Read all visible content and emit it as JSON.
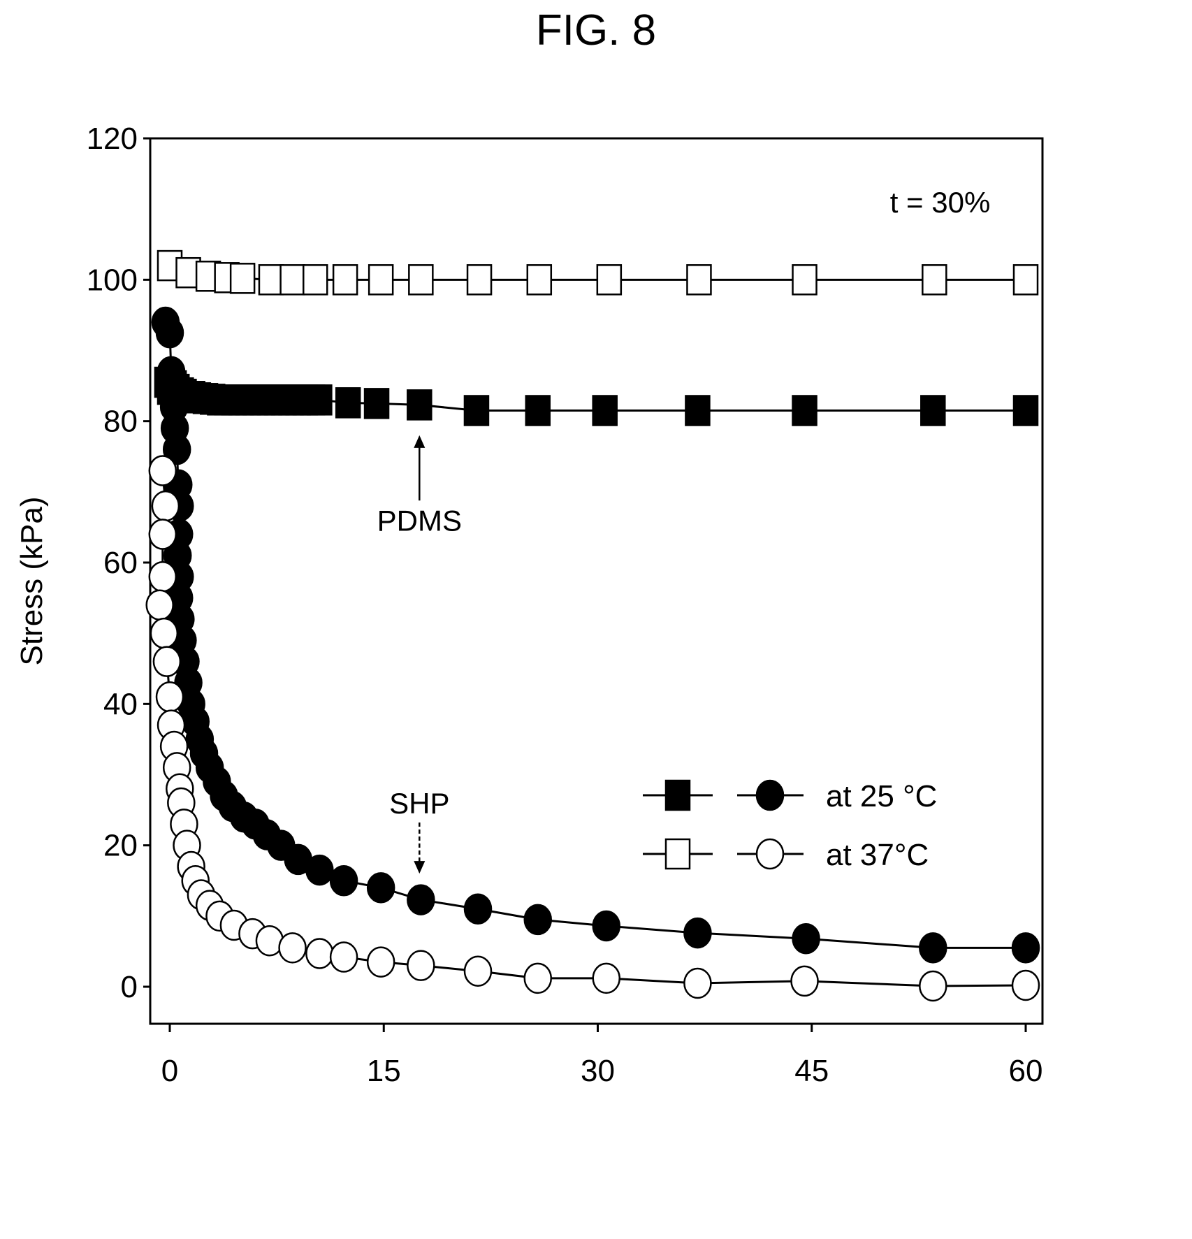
{
  "figure": {
    "title": "FIG. 8"
  },
  "chart_data": {
    "type": "scatter",
    "title": "FIG. 8",
    "xlabel": "",
    "ylabel": "Stress (kPa)",
    "xlim": [
      -2,
      60.5
    ],
    "ylim": [
      -12,
      120
    ],
    "xticks": [
      0,
      15,
      30,
      45,
      60
    ],
    "yticks": [
      0,
      20,
      40,
      60,
      80,
      100,
      120
    ],
    "annotations": [
      {
        "text": "t = 30%",
        "x": 54,
        "y": 111
      },
      {
        "text": "PDMS",
        "x": 17.5,
        "y": 66,
        "arrow_to": [
          17.5,
          78
        ]
      },
      {
        "text": "SHP",
        "x": 17.5,
        "y": 26,
        "arrow_to": [
          17.5,
          16
        ]
      }
    ],
    "legend": {
      "placement": "lower-right",
      "entries": [
        {
          "label": "at 25 °C",
          "series": [
            "PDMS at 25 °C",
            "SHP at 25 °C"
          ]
        },
        {
          "label": "at 37°C",
          "series": [
            "PDMS at 37 °C",
            "SHP at 37 °C"
          ]
        }
      ]
    },
    "series": [
      {
        "id": "pdms25",
        "marker": "square",
        "filled": true,
        "label_ref": "PDMS",
        "points": [
          [
            -0.2,
            85.5
          ],
          [
            0,
            84.5
          ],
          [
            0.1,
            85.5
          ],
          [
            0.3,
            85
          ],
          [
            0.5,
            84.5
          ],
          [
            0.8,
            84
          ],
          [
            1,
            83.8
          ],
          [
            1.3,
            83.5
          ],
          [
            1.6,
            83.5
          ],
          [
            2,
            83.3
          ],
          [
            2.5,
            83.2
          ],
          [
            3,
            83.1
          ],
          [
            3.5,
            83
          ],
          [
            4,
            83
          ],
          [
            4.5,
            83
          ],
          [
            5,
            83
          ],
          [
            5.5,
            83
          ],
          [
            6,
            83
          ],
          [
            6.5,
            83
          ],
          [
            7,
            83
          ],
          [
            7.5,
            83
          ],
          [
            8,
            83
          ],
          [
            8.5,
            83
          ],
          [
            9,
            83
          ],
          [
            9.5,
            83
          ],
          [
            10,
            83
          ],
          [
            10.5,
            83
          ],
          [
            12.5,
            82.6
          ],
          [
            14.5,
            82.5
          ],
          [
            17.5,
            82.3
          ],
          [
            21.5,
            81.5
          ],
          [
            25.8,
            81.5
          ],
          [
            30.5,
            81.5
          ],
          [
            37,
            81.5
          ],
          [
            44.5,
            81.5
          ],
          [
            53.5,
            81.5
          ],
          [
            60,
            81.5
          ]
        ]
      },
      {
        "id": "pdms37",
        "marker": "square",
        "filled": false,
        "points": [
          [
            0,
            102
          ],
          [
            1.3,
            101
          ],
          [
            2.7,
            100.5
          ],
          [
            4,
            100.3
          ],
          [
            5.1,
            100.2
          ],
          [
            7.1,
            100
          ],
          [
            8.6,
            100
          ],
          [
            10.2,
            100
          ],
          [
            12.3,
            100
          ],
          [
            14.8,
            100
          ],
          [
            17.6,
            100
          ],
          [
            21.7,
            100
          ],
          [
            25.9,
            100
          ],
          [
            30.8,
            100
          ],
          [
            37.1,
            100
          ],
          [
            44.5,
            100
          ],
          [
            53.6,
            100
          ],
          [
            60,
            100
          ]
        ]
      },
      {
        "id": "shp25",
        "marker": "circle",
        "filled": true,
        "label_ref": "SHP",
        "points": [
          [
            -0.3,
            94
          ],
          [
            0,
            92.5
          ],
          [
            0.1,
            87
          ],
          [
            0.2,
            84
          ],
          [
            0.3,
            82
          ],
          [
            0.35,
            79
          ],
          [
            0.5,
            76
          ],
          [
            0.6,
            71
          ],
          [
            0.7,
            68
          ],
          [
            0.65,
            64
          ],
          [
            0.55,
            61
          ],
          [
            0.7,
            58
          ],
          [
            0.65,
            55
          ],
          [
            0.75,
            52
          ],
          [
            0.9,
            49
          ],
          [
            1.1,
            46
          ],
          [
            1.3,
            43
          ],
          [
            1.5,
            40
          ],
          [
            1.8,
            37.5
          ],
          [
            2.1,
            35
          ],
          [
            2.4,
            33
          ],
          [
            2.8,
            31
          ],
          [
            3.3,
            29
          ],
          [
            3.8,
            27
          ],
          [
            4.4,
            25.5
          ],
          [
            5.2,
            24
          ],
          [
            6,
            23
          ],
          [
            6.8,
            21.5
          ],
          [
            7.8,
            20
          ],
          [
            9,
            18
          ],
          [
            10.5,
            16.5
          ],
          [
            12.2,
            15
          ],
          [
            14.8,
            14
          ],
          [
            17.6,
            12.3
          ],
          [
            21.6,
            11
          ],
          [
            25.8,
            9.5
          ],
          [
            30.6,
            8.6
          ],
          [
            37,
            7.6
          ],
          [
            44.6,
            6.8
          ],
          [
            53.5,
            5.5
          ],
          [
            60,
            5.5
          ]
        ]
      },
      {
        "id": "shp37",
        "marker": "circle",
        "filled": false,
        "points": [
          [
            -0.5,
            73
          ],
          [
            -0.3,
            68
          ],
          [
            -0.5,
            64
          ],
          [
            -0.5,
            58
          ],
          [
            -0.7,
            54
          ],
          [
            -0.4,
            50
          ],
          [
            -0.2,
            46
          ],
          [
            0,
            41
          ],
          [
            0.1,
            37
          ],
          [
            0.3,
            34
          ],
          [
            0.5,
            31
          ],
          [
            0.7,
            28
          ],
          [
            0.8,
            26
          ],
          [
            1,
            23
          ],
          [
            1.2,
            20
          ],
          [
            1.5,
            17
          ],
          [
            1.8,
            15
          ],
          [
            2.2,
            13
          ],
          [
            2.8,
            11.5
          ],
          [
            3.5,
            10
          ],
          [
            4.5,
            8.7
          ],
          [
            5.8,
            7.5
          ],
          [
            7,
            6.5
          ],
          [
            8.6,
            5.5
          ],
          [
            10.5,
            4.7
          ],
          [
            12.2,
            4.2
          ],
          [
            14.8,
            3.5
          ],
          [
            17.6,
            3
          ],
          [
            21.6,
            2.2
          ],
          [
            25.8,
            1.2
          ],
          [
            30.6,
            1.2
          ],
          [
            37,
            0.5
          ],
          [
            44.5,
            0.8
          ],
          [
            53.5,
            0.1
          ],
          [
            60,
            0.2
          ]
        ]
      }
    ]
  },
  "colors": {
    "ink": "#000000",
    "background": "#ffffff"
  }
}
